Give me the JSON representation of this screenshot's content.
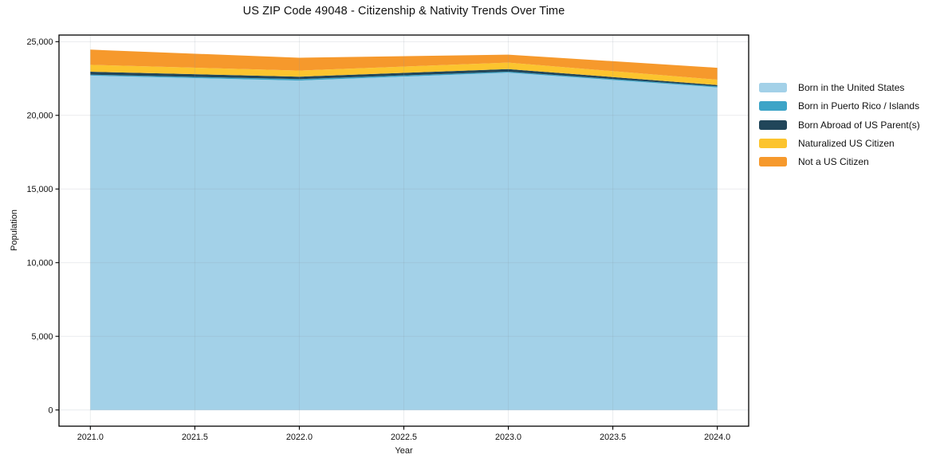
{
  "chart_data": {
    "type": "area",
    "stacked": true,
    "title": "US ZIP Code 49048 - Citizenship & Nativity Trends Over Time",
    "xlabel": "Year",
    "ylabel": "Population",
    "x": [
      2021,
      2022,
      2023,
      2024
    ],
    "series": [
      {
        "name": "Born in the United States",
        "color": "#A3D1E8",
        "values": [
          22700,
          22360,
          22900,
          21900
        ]
      },
      {
        "name": "Born in Puerto Rico / Islands",
        "color": "#3DA4C7",
        "values": [
          60,
          100,
          60,
          70
        ]
      },
      {
        "name": "Born Abroad of US Parent(s)",
        "color": "#21465A",
        "values": [
          200,
          170,
          180,
          90
        ]
      },
      {
        "name": "Naturalized US Citizen",
        "color": "#FCC42E",
        "values": [
          470,
          410,
          440,
          360
        ]
      },
      {
        "name": "Not a US Citizen",
        "color": "#F6992C",
        "values": [
          1030,
          870,
          540,
          810
        ]
      }
    ],
    "xlim": [
      2020.85,
      2024.15
    ],
    "ylim": [
      -1100,
      25450
    ],
    "x_ticks": [
      2021.0,
      2021.5,
      2022.0,
      2022.5,
      2023.0,
      2023.5,
      2024.0
    ],
    "y_ticks": [
      0,
      5000,
      10000,
      15000,
      20000,
      25000
    ],
    "grid": true,
    "legend_position": "center-right",
    "axis_color": "#000000",
    "grid_color": "#8a95a0"
  }
}
